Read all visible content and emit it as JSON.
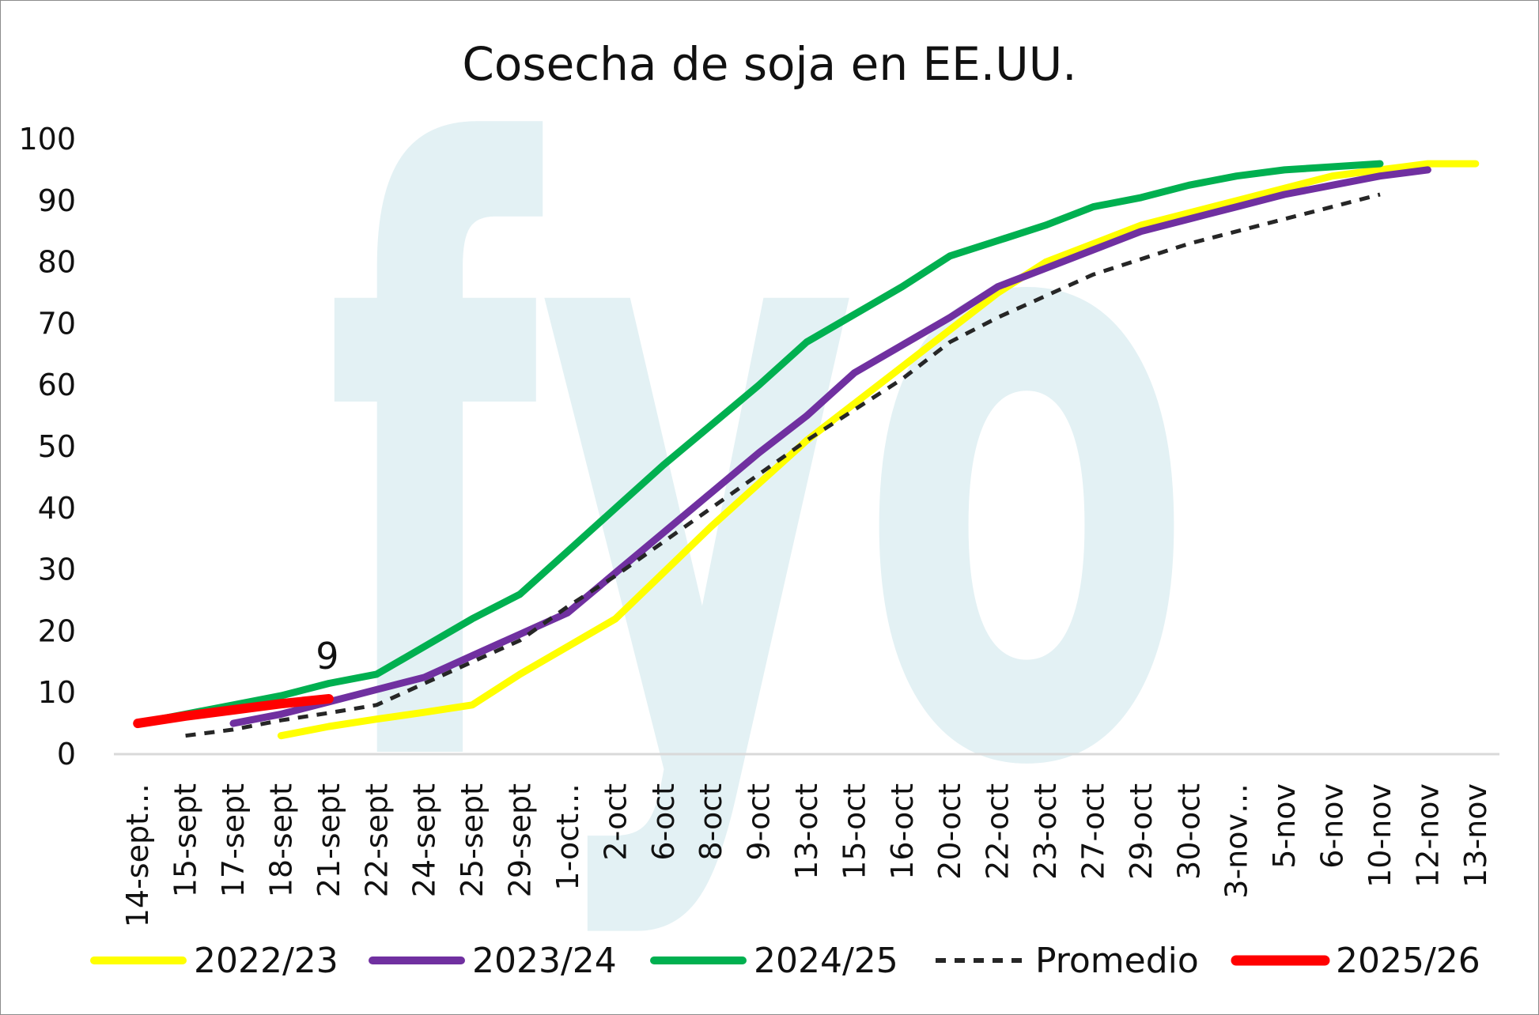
{
  "colors": {
    "background": "#ffffff",
    "axis": "#d9d9d9",
    "text": "#111111",
    "watermark": "#e3f1f4"
  },
  "watermark": {
    "text": "fyo"
  },
  "chart_data": {
    "type": "line",
    "title": "Cosecha de soja en EE.UU.",
    "xlabel": "",
    "ylabel": "",
    "ylim": [
      0,
      100
    ],
    "yticks": [
      0,
      10,
      20,
      30,
      40,
      50,
      60,
      70,
      80,
      90,
      100
    ],
    "grid": false,
    "legend_position": "bottom",
    "categories": [
      "14-sept…",
      "15-sept",
      "17-sept",
      "18-sept",
      "21-sept",
      "22-sept",
      "24-sept",
      "25-sept",
      "29-sept",
      "1-oct…",
      "2-oct",
      "6-oct",
      "8-oct",
      "9-oct",
      "13-oct",
      "15-oct",
      "16-oct",
      "20-oct",
      "22-oct",
      "23-oct",
      "27-oct",
      "29-oct",
      "30-oct",
      "3-nov…",
      "5-nov",
      "6-nov",
      "10-nov",
      "12-nov",
      "13-nov"
    ],
    "series": [
      {
        "name": "2022/23",
        "color": "#ffff00",
        "dashed": false,
        "width": 9,
        "values": [
          null,
          null,
          null,
          3,
          4.5,
          5.7,
          6.8,
          8,
          13,
          17.5,
          22,
          29.5,
          37,
          44,
          51,
          57,
          63,
          69,
          75,
          80,
          83,
          86,
          88,
          90,
          92,
          94,
          95,
          96,
          96
        ]
      },
      {
        "name": "2023/24",
        "color": "#7030a0",
        "dashed": false,
        "width": 9,
        "values": [
          null,
          null,
          5,
          6.5,
          8.5,
          10.5,
          12.5,
          16,
          19.5,
          23,
          29.5,
          36,
          42.5,
          49,
          55,
          62,
          66.5,
          71,
          76,
          79,
          82,
          85,
          87,
          89,
          91,
          92.5,
          94,
          95,
          null
        ]
      },
      {
        "name": "2024/25",
        "color": "#00b050",
        "dashed": false,
        "width": 9,
        "values": [
          5,
          6.5,
          8,
          9.5,
          11.5,
          13,
          17.5,
          22,
          26,
          33,
          40,
          47,
          53.5,
          60,
          67,
          71.5,
          76,
          81,
          83.5,
          86,
          89,
          90.5,
          92.5,
          94,
          95,
          95.5,
          96,
          null,
          null
        ]
      },
      {
        "name": "Promedio",
        "color": "#262626",
        "dashed": true,
        "width": 5,
        "values": [
          null,
          3,
          4,
          5.5,
          6.7,
          8,
          11.5,
          15,
          18.5,
          24,
          29,
          34.5,
          40,
          45.5,
          51,
          56,
          61,
          67,
          71,
          74.5,
          78,
          80.5,
          83,
          85,
          87,
          89,
          91,
          null,
          null
        ]
      },
      {
        "name": "2025/26",
        "color": "#ff0000",
        "dashed": false,
        "width": 12,
        "values": [
          5,
          6.2,
          7.2,
          8.2,
          9,
          null,
          null,
          null,
          null,
          null,
          null,
          null,
          null,
          null,
          null,
          null,
          null,
          null,
          null,
          null,
          null,
          null,
          null,
          null,
          null,
          null,
          null,
          null,
          null
        ]
      }
    ],
    "annotations": [
      {
        "text": "9",
        "series": "2025/26",
        "category": "21-sept",
        "value": 9
      }
    ]
  }
}
